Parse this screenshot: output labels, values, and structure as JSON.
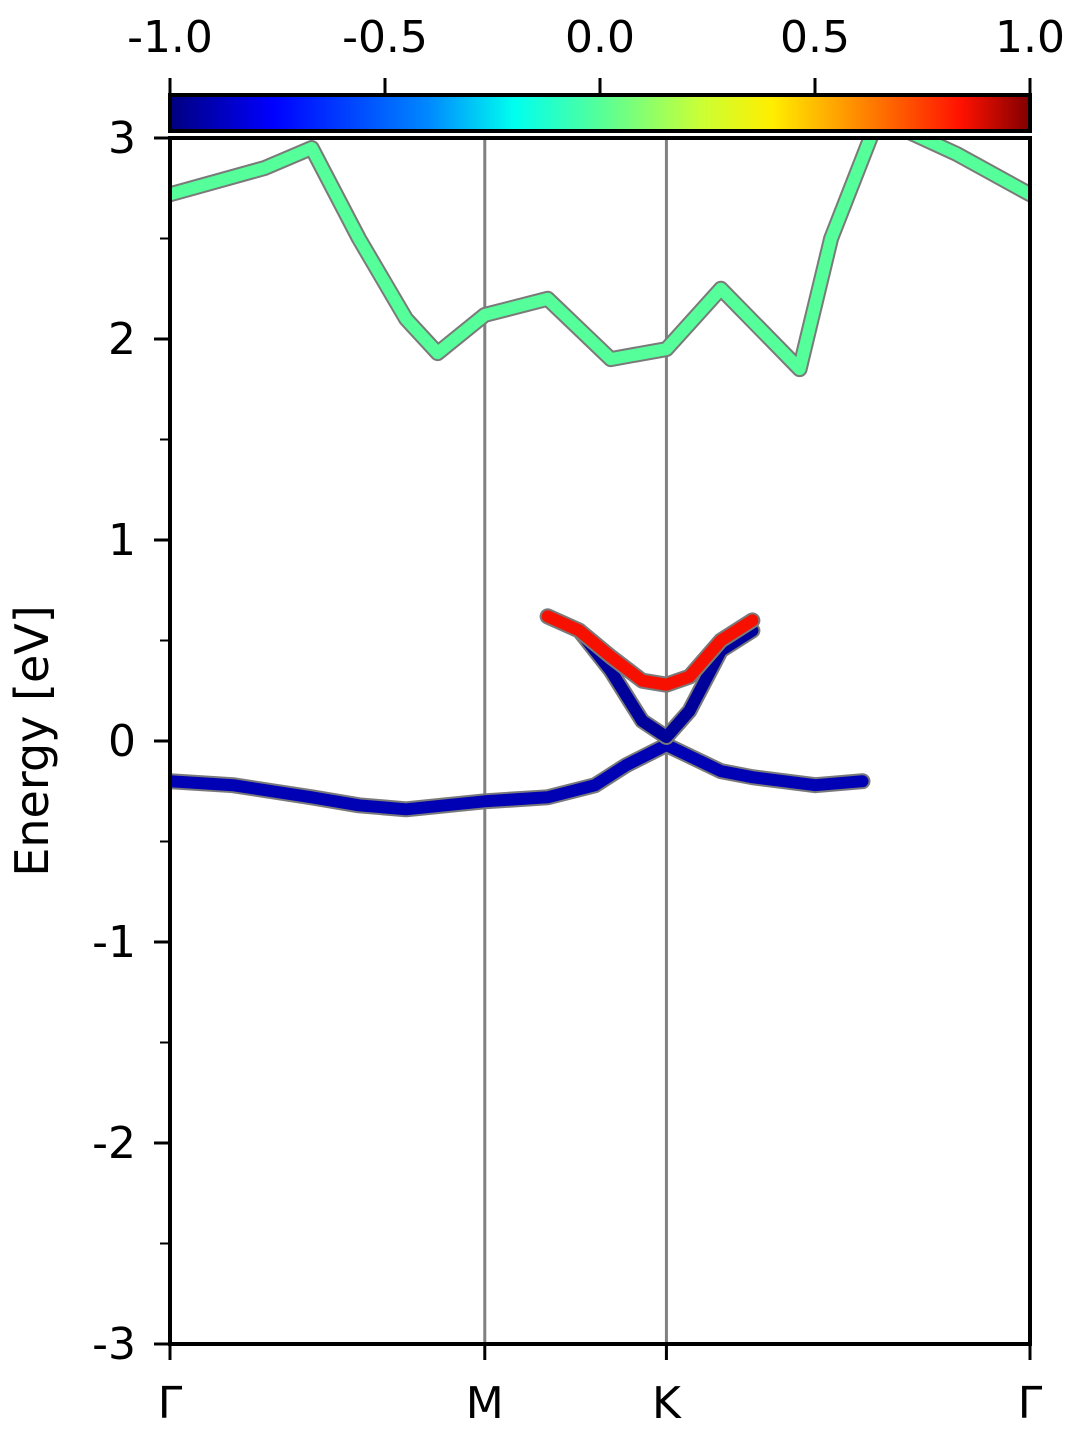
{
  "chart_data": {
    "type": "line",
    "title": "",
    "xlabel": "",
    "ylabel": "Energy [eV]",
    "ylim": [
      -3,
      3
    ],
    "y_ticks": [
      "3",
      "2",
      "1",
      "0",
      "-1",
      "-2",
      "-3"
    ],
    "y_tick_values": [
      3,
      2,
      1,
      0,
      -1,
      -2,
      -3
    ],
    "k_path": [
      "Γ",
      "M",
      "K",
      "Γ"
    ],
    "k_positions": [
      0,
      1,
      1.577,
      2.732
    ],
    "colorbar": {
      "colormap": "jet",
      "range": [
        -1.0,
        1.0
      ],
      "ticks": [
        "-1.0",
        "-0.5",
        "0.0",
        "0.5",
        "1.0"
      ],
      "tick_values": [
        -1.0,
        -0.5,
        0.0,
        0.5,
        1.0
      ]
    },
    "grid": false,
    "note_color_scale": "band color encodes projected value from -1.0 (dark blue) to 1.0 (dark red)",
    "series": [
      {
        "x": [
          0.0,
          0.3,
          0.45,
          0.6,
          0.75,
          0.85,
          1.0,
          1.2,
          1.4,
          1.577,
          1.75,
          2.0,
          2.1,
          2.25,
          2.5,
          2.732
        ],
        "y": [
          2.72,
          2.85,
          2.95,
          2.5,
          2.1,
          1.93,
          2.12,
          2.2,
          1.9,
          1.95,
          2.25,
          1.85,
          2.5,
          3.1,
          2.92,
          2.72
        ],
        "color_value": 0.0
      },
      {
        "x": [
          0.0,
          0.2,
          0.45,
          0.6,
          0.75,
          1.0,
          1.2,
          1.35,
          1.45,
          1.577,
          1.75,
          1.85,
          1.95,
          2.05,
          2.2
        ],
        "y": [
          -0.2,
          -0.22,
          -0.28,
          -0.32,
          -0.34,
          -0.3,
          -0.28,
          -0.22,
          -0.12,
          -0.02,
          -0.15,
          -0.18,
          -0.2,
          -0.22,
          -0.2
        ],
        "color_value": -0.9
      },
      {
        "x": [
          1.2,
          1.3,
          1.4,
          1.5,
          1.577,
          1.65,
          1.75,
          1.85
        ],
        "y": [
          0.62,
          0.55,
          0.35,
          0.1,
          0.02,
          0.15,
          0.45,
          0.55
        ],
        "color_value": -0.95
      },
      {
        "x": [
          1.2,
          1.3,
          1.4,
          1.5,
          1.577,
          1.65,
          1.75,
          1.85
        ],
        "y": [
          0.62,
          0.55,
          0.42,
          0.3,
          0.28,
          0.32,
          0.5,
          0.6
        ],
        "color_value": 0.85
      }
    ]
  }
}
